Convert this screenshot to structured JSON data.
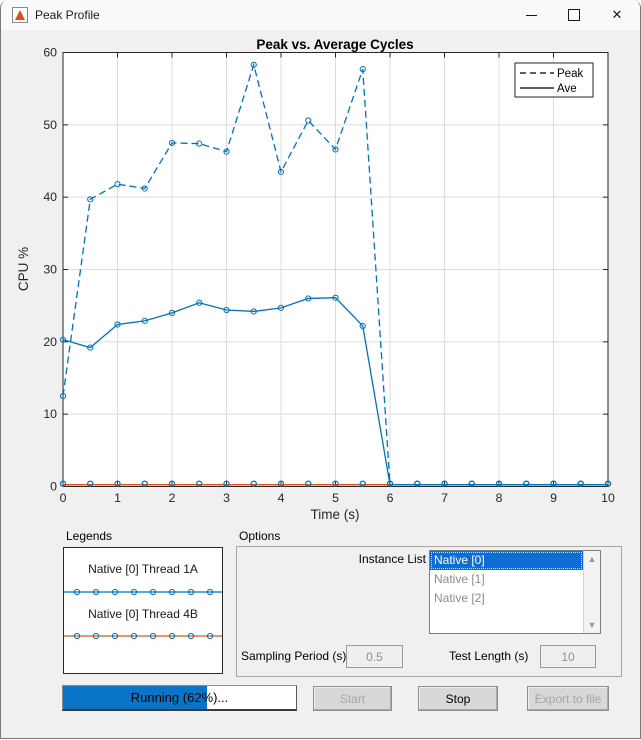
{
  "window": {
    "title": "Peak Profile",
    "controls": {
      "minimize": "minimize",
      "maximize": "maximize",
      "close": "close"
    }
  },
  "chart_data": {
    "type": "line",
    "title": "Peak vs. Average Cycles",
    "xlabel": "Time (s)",
    "ylabel": "CPU %",
    "xlim": [
      0,
      10
    ],
    "ylim": [
      0,
      60
    ],
    "xticks": [
      0,
      1,
      2,
      3,
      4,
      5,
      6,
      7,
      8,
      9,
      10
    ],
    "yticks": [
      0,
      10,
      20,
      30,
      40,
      50,
      60
    ],
    "grid": true,
    "legend": {
      "position": "northeast",
      "entries": [
        {
          "label": "Peak",
          "style": "dashed"
        },
        {
          "label": "Ave",
          "style": "solid"
        }
      ]
    },
    "x": [
      0,
      0.5,
      1,
      1.5,
      2,
      2.5,
      3,
      3.5,
      4,
      4.5,
      5,
      5.5,
      6,
      6.5,
      7,
      7.5,
      8,
      8.5,
      9,
      9.5,
      10
    ],
    "series": [
      {
        "name": "Native [0] Thread 4B Peak",
        "color": "#D95319",
        "style": "dashed",
        "marker": "o",
        "marker_color": "#0072BD",
        "values": [
          0,
          0,
          0,
          0,
          0,
          0,
          0,
          0,
          0,
          0,
          0,
          0,
          0,
          0,
          0,
          0,
          0,
          0,
          0,
          0,
          0
        ]
      },
      {
        "name": "Native [0] Thread 4B Ave",
        "color": "#D95319",
        "style": "solid",
        "marker": "o",
        "marker_color": "#0072BD",
        "values": [
          0,
          0,
          0,
          0,
          0,
          0,
          0,
          0,
          0,
          0,
          0,
          0,
          0,
          0,
          0,
          0,
          0,
          0,
          0,
          0,
          0
        ]
      },
      {
        "name": "Native [0] Thread 1A Peak",
        "color": "#0072BD",
        "style": "dashed",
        "marker": "o",
        "marker_color": "#0072BD",
        "values": [
          12.5,
          39.7,
          41.8,
          41.2,
          47.5,
          47.4,
          46.3,
          58.3,
          43.5,
          50.6,
          46.6,
          57.7,
          0,
          0,
          0,
          0,
          0,
          0,
          0,
          0,
          0
        ]
      },
      {
        "name": "Native [0] Thread 1A Ave",
        "color": "#0072BD",
        "style": "solid",
        "marker": "o",
        "marker_color": "#0072BD",
        "values": [
          20.3,
          19.2,
          22.4,
          22.9,
          24.0,
          25.4,
          24.4,
          24.2,
          24.7,
          26.0,
          26.1,
          22.2,
          0,
          0,
          0,
          0,
          0,
          0,
          0,
          0,
          0
        ]
      }
    ]
  },
  "legends_panel": {
    "label": "Legends",
    "entries": [
      {
        "label": "Native [0] Thread 1A",
        "line_color": "#0072BD",
        "marker_color": "#0072BD"
      },
      {
        "label": "Native [0] Thread 4B",
        "line_color": "#D95319",
        "marker_color": "#0072BD"
      }
    ]
  },
  "options_panel": {
    "label": "Options",
    "instance_list": {
      "label": "Instance List",
      "items": [
        {
          "label": "Native [0]",
          "selected": true
        },
        {
          "label": "Native [1]",
          "selected": false
        },
        {
          "label": "Native [2]",
          "selected": false
        }
      ]
    },
    "sampling_period": {
      "label": "Sampling Period (s)",
      "value": "0.5"
    },
    "test_length": {
      "label": "Test Length (s)",
      "value": "10"
    }
  },
  "progress": {
    "text": "Running (62%)...",
    "percent": 62
  },
  "buttons": [
    {
      "label": "Start",
      "enabled": false
    },
    {
      "label": "Stop",
      "enabled": true
    },
    {
      "label": "Export to file",
      "enabled": false
    }
  ],
  "colors": {
    "plot_blue": "#0072BD",
    "plot_orange": "#D95319",
    "progress_fill": "#0a74c6",
    "list_selection": "#0e6cd3",
    "figure_background": "#f0f0f0"
  }
}
